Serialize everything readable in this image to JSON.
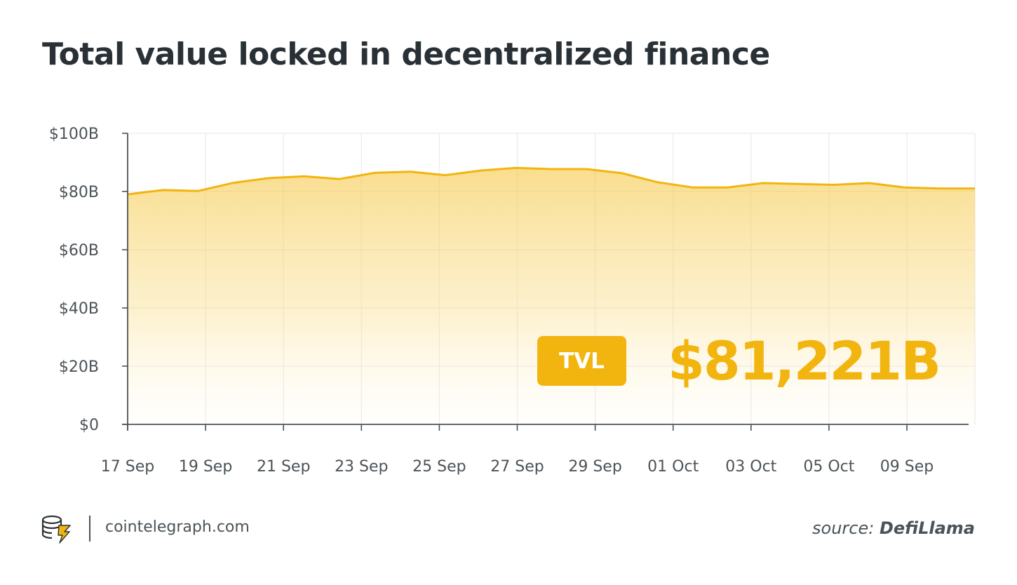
{
  "header": {
    "title": "Total value locked in decentralized finance"
  },
  "badge": {
    "label": "TVL",
    "value": "$81,221B"
  },
  "footer": {
    "site": "cointelegraph.com",
    "source_prefix": "source:",
    "source_name": "DefiLlama"
  },
  "colors": {
    "accent": "#f2b50f",
    "text": "#2a3136",
    "axis": "#4b5358"
  },
  "chart_data": {
    "type": "area",
    "title": "Total value locked in decentralized finance",
    "xlabel": "",
    "ylabel": "",
    "ylim": [
      0,
      100
    ],
    "y_unit": "billion USD",
    "grid": true,
    "y_tick_labels": [
      "$0",
      "$20B",
      "$40B",
      "$60B",
      "$80B",
      "$100B"
    ],
    "y_tick_values": [
      0,
      20,
      40,
      60,
      80,
      100
    ],
    "x_tick_labels": [
      "17 Sep",
      "19 Sep",
      "21 Sep",
      "23 Sep",
      "25 Sep",
      "27 Sep",
      "29 Sep",
      "01 Oct",
      "03 Oct",
      "05 Oct",
      "09 Sep"
    ],
    "series": [
      {
        "values": [
          79,
          80.5,
          80.2,
          83,
          84.6,
          85.2,
          84.3,
          86.4,
          86.8,
          85.6,
          87.2,
          88.1,
          87.7,
          87.7,
          86.3,
          83.2,
          81.4,
          81.4,
          82.9,
          82.6,
          82.3,
          82.9,
          81.4,
          81,
          81
        ]
      }
    ]
  }
}
